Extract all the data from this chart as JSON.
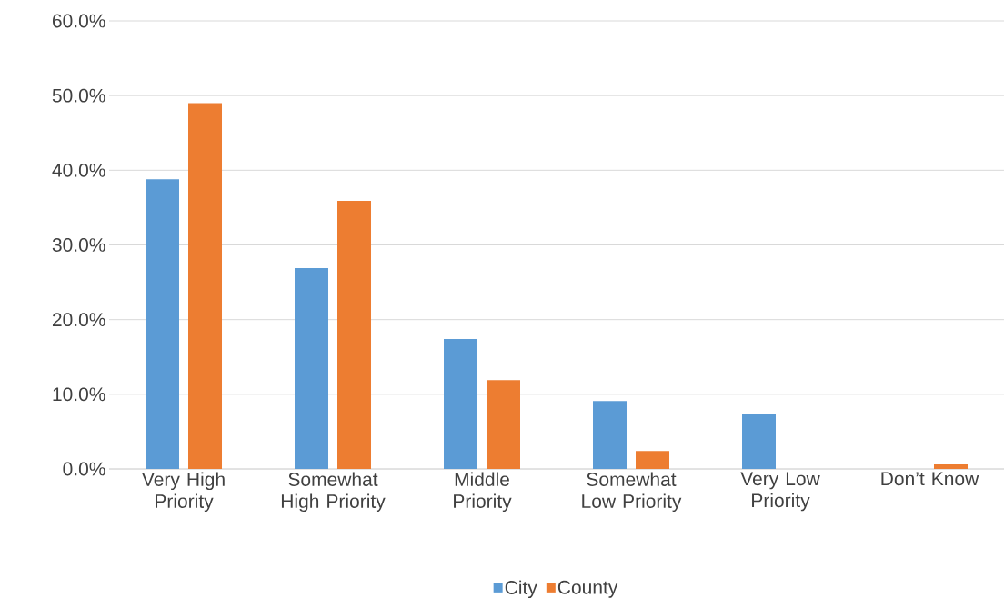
{
  "chart_data": {
    "type": "bar",
    "categories": [
      "Very High Priority",
      "Somewhat High Priority",
      "Middle Priority",
      "Somewhat Low Priority",
      "Very Low Priority",
      "Don’t Know"
    ],
    "series": [
      {
        "name": "City",
        "color": "#5b9bd5",
        "values": [
          38.8,
          26.9,
          17.4,
          9.1,
          7.4,
          0
        ]
      },
      {
        "name": "County",
        "color": "#ed7d31",
        "values": [
          49.0,
          35.9,
          11.9,
          2.4,
          0,
          0.6
        ]
      }
    ],
    "ylim": [
      0,
      60
    ],
    "yticks": [
      {
        "value": 0,
        "label": "0.0%"
      },
      {
        "value": 10,
        "label": "10.0%"
      },
      {
        "value": 20,
        "label": "20.0%"
      },
      {
        "value": 30,
        "label": "30.0%"
      },
      {
        "value": 40,
        "label": "40.0%"
      },
      {
        "value": 50,
        "label": "50.0%"
      },
      {
        "value": 60,
        "label": "60.0%"
      }
    ],
    "grid": "y",
    "legend": "bottom"
  }
}
